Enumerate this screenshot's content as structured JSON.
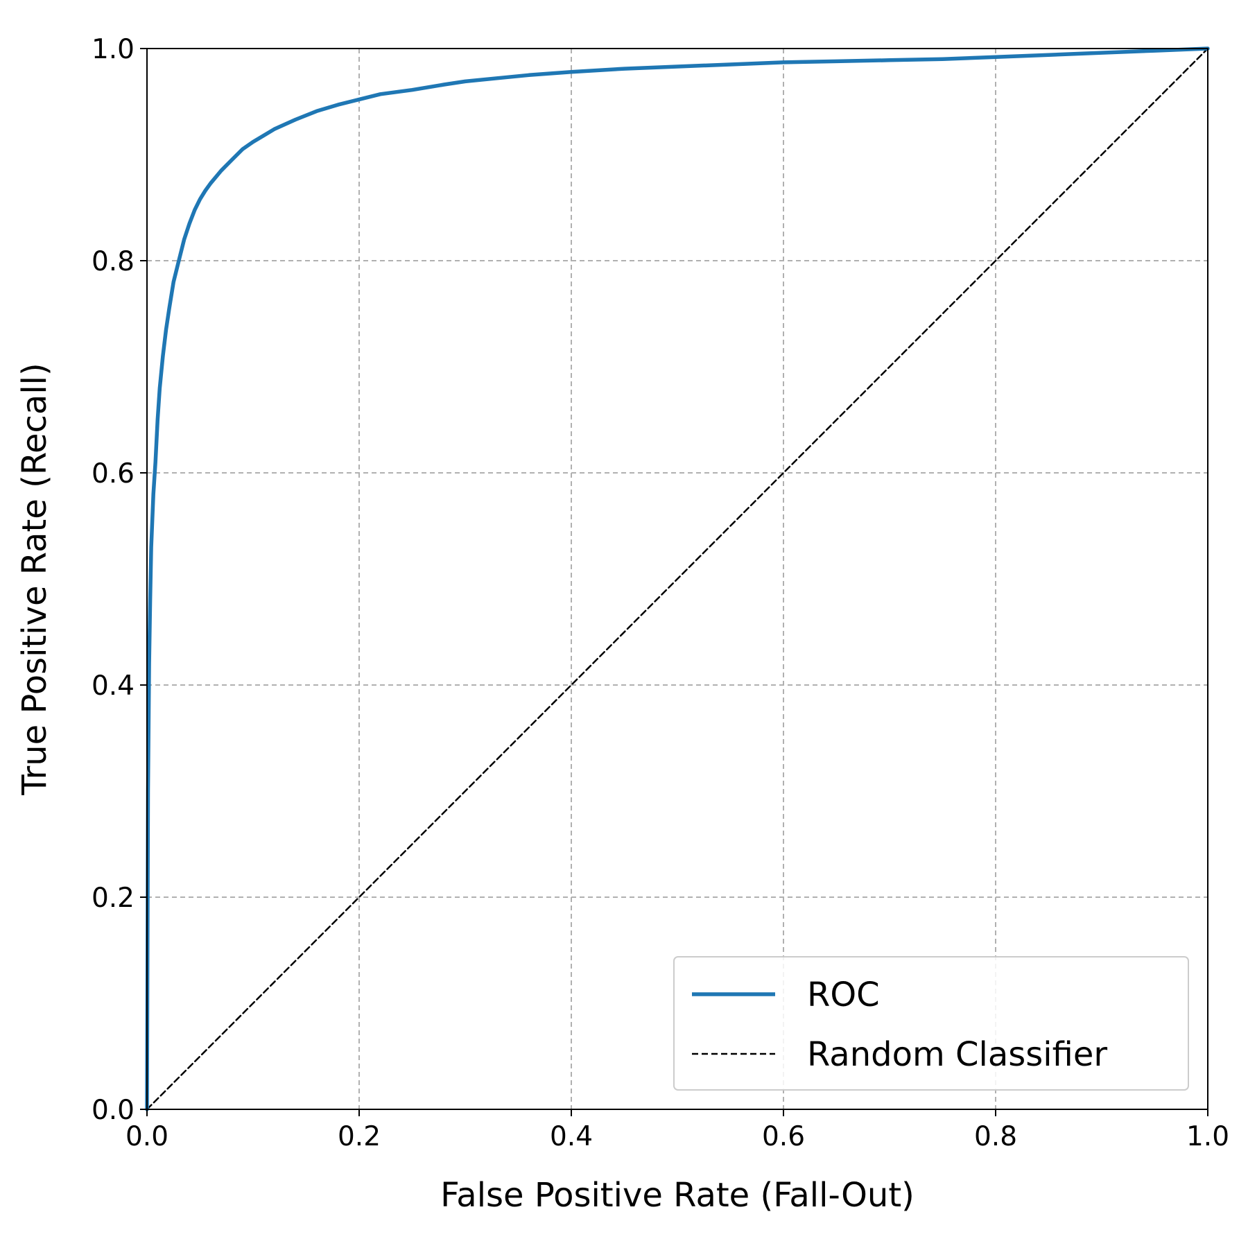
{
  "chart_data": {
    "type": "line",
    "title": "",
    "xlabel": "False Positive Rate (Fall-Out)",
    "ylabel": "True Positive Rate (Recall)",
    "xlim": [
      0,
      1
    ],
    "ylim": [
      0,
      1
    ],
    "x_ticks": [
      "0.0",
      "0.2",
      "0.4",
      "0.6",
      "0.8",
      "1.0"
    ],
    "y_ticks": [
      "0.0",
      "0.2",
      "0.4",
      "0.6",
      "0.8",
      "1.0"
    ],
    "grid": true,
    "legend_position": "lower-right",
    "series": [
      {
        "name": "ROC",
        "color": "#1f77b4",
        "style": "solid",
        "x": [
          0.0,
          0.001,
          0.002,
          0.003,
          0.004,
          0.006,
          0.008,
          0.01,
          0.012,
          0.015,
          0.018,
          0.021,
          0.025,
          0.03,
          0.035,
          0.04,
          0.045,
          0.05,
          0.055,
          0.06,
          0.07,
          0.08,
          0.09,
          0.1,
          0.11,
          0.12,
          0.14,
          0.16,
          0.18,
          0.2,
          0.22,
          0.25,
          0.28,
          0.3,
          0.33,
          0.36,
          0.4,
          0.45,
          0.5,
          0.55,
          0.6,
          0.65,
          0.7,
          0.75,
          0.8,
          0.85,
          0.9,
          0.95,
          1.0
        ],
        "y": [
          0.0,
          0.3,
          0.42,
          0.48,
          0.53,
          0.58,
          0.61,
          0.65,
          0.68,
          0.71,
          0.735,
          0.755,
          0.78,
          0.8,
          0.82,
          0.835,
          0.848,
          0.858,
          0.866,
          0.873,
          0.885,
          0.895,
          0.905,
          0.912,
          0.918,
          0.924,
          0.933,
          0.941,
          0.947,
          0.952,
          0.957,
          0.961,
          0.966,
          0.969,
          0.972,
          0.975,
          0.978,
          0.981,
          0.983,
          0.985,
          0.987,
          0.988,
          0.989,
          0.99,
          0.992,
          0.994,
          0.996,
          0.998,
          1.0
        ]
      },
      {
        "name": "Random Classifier",
        "color": "#000000",
        "style": "dashed",
        "x": [
          0,
          1
        ],
        "y": [
          0,
          1
        ]
      }
    ]
  }
}
